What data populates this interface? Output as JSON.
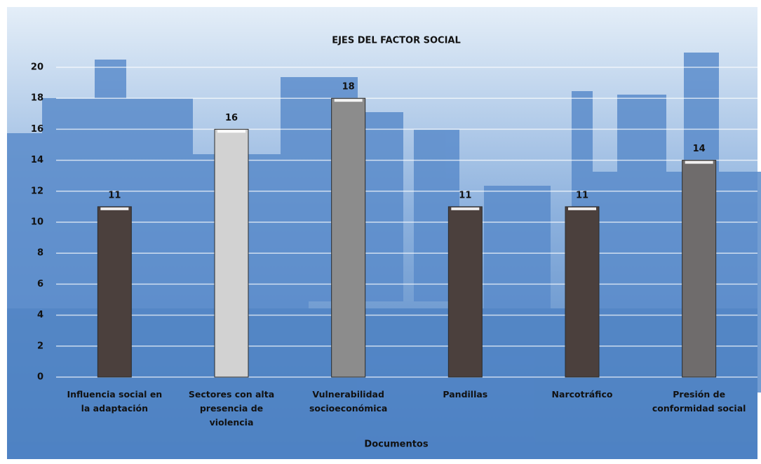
{
  "chart_data": {
    "type": "bar",
    "title": "EJES DEL FACTOR SOCIAL",
    "x_label": "Documentos",
    "categories": [
      "Influencia social en la adaptación",
      "Sectores con alta presencia de violencia",
      "Vulnerabilidad socioeconómica",
      "Pandillas",
      "Narcotráfico",
      "Presión de conformidad social"
    ],
    "values": [
      11,
      16,
      18,
      11,
      11,
      14
    ],
    "colors": [
      "#4b403d",
      "#d2d2d2",
      "#8c8c8c",
      "#4b403d",
      "#4b403d",
      "#6f6c6c"
    ],
    "ylim": [
      0,
      20
    ],
    "yticks": [
      0,
      2,
      4,
      6,
      8,
      10,
      12,
      14,
      16,
      18,
      20
    ],
    "grid": true
  }
}
